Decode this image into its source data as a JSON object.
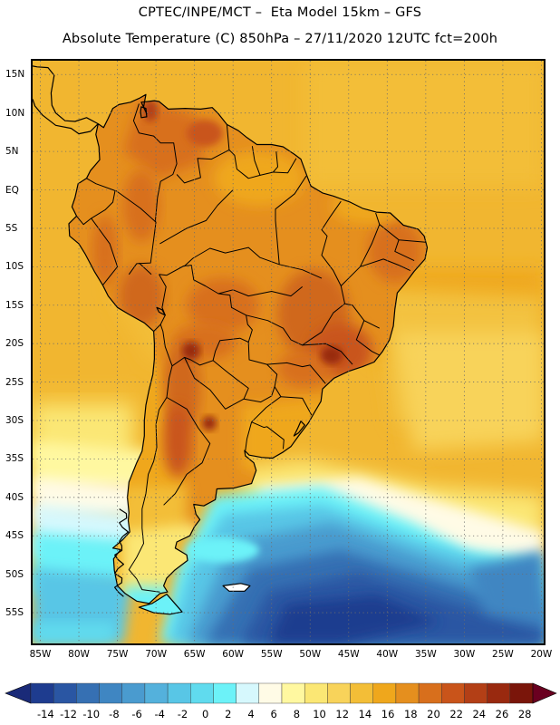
{
  "header": {
    "line1": "CPTEC/INPE/MCT –  Eta Model 15km – GFS",
    "line2": "Absolute Temperature (C) 850hPa – 27/11/2020 12UTC fct=200h"
  },
  "map": {
    "lat_labels": [
      "15N",
      "10N",
      "5N",
      "EQ",
      "5S",
      "10S",
      "15S",
      "20S",
      "25S",
      "30S",
      "35S",
      "40S",
      "45S",
      "50S",
      "55S"
    ],
    "lon_labels": [
      "85W",
      "80W",
      "75W",
      "70W",
      "65W",
      "60W",
      "55W",
      "50W",
      "45W",
      "40W",
      "35W",
      "30W",
      "25W",
      "20W"
    ],
    "grid": "dotted",
    "colors": {
      "ocean_warm": "#f1be37",
      "land_warm": "#e58f1e",
      "land_hot": "#d0681a",
      "cold_southern_ocean": "#2f66ba",
      "coastline": "#000000"
    }
  },
  "colorbar": {
    "labels": [
      "-14",
      "-12",
      "-10",
      "-8",
      "-6",
      "-4",
      "-2",
      "0",
      "2",
      "4",
      "6",
      "8",
      "10",
      "12",
      "14",
      "16",
      "18",
      "20",
      "22",
      "24",
      "26",
      "28"
    ],
    "colors": [
      "#1e3c8f",
      "#2a56a3",
      "#3670b3",
      "#3f86c2",
      "#4a9bcf",
      "#54b1dc",
      "#58c6e6",
      "#60dbee",
      "#6cf2f8",
      "#d6f8fd",
      "#fffbe6",
      "#fff8a0",
      "#fbe774",
      "#f8d35a",
      "#f3be37",
      "#efa71c",
      "#e58f1e",
      "#d86f1c",
      "#c9541a",
      "#b33f16",
      "#99290f",
      "#7a150a"
    ],
    "under_color": "#1a2a78",
    "over_color": "#6a0020"
  }
}
